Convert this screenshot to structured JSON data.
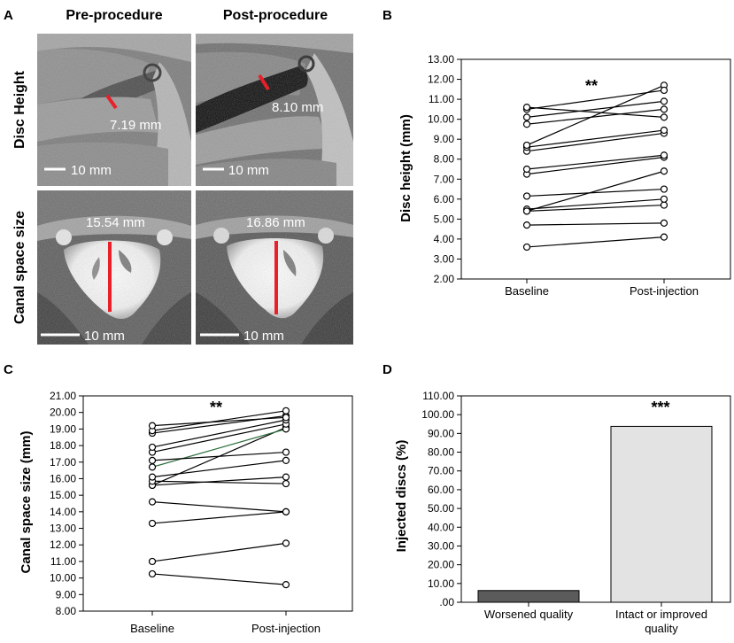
{
  "panels": {
    "A": {
      "letter": "A",
      "col_pre": "Pre-procedure",
      "col_post": "Post-procedure",
      "row1": "Disc Height",
      "row2": "Canal space size",
      "meas_disc_pre": "7.19 mm",
      "meas_disc_post": "8.10 mm",
      "meas_canal_pre": "15.54 mm",
      "meas_canal_post": "16.86 mm",
      "scale": "10 mm",
      "marker_color": "#e8202a"
    },
    "B": {
      "letter": "B"
    },
    "C": {
      "letter": "C"
    },
    "D": {
      "letter": "D"
    }
  },
  "chart_data": [
    {
      "id": "B",
      "type": "line",
      "ylabel": "Disc height (mm)",
      "categories": [
        "Baseline",
        "Post-injection"
      ],
      "ylim": [
        2.0,
        13.0
      ],
      "yticks": [
        "2.00",
        "3.00",
        "4.00",
        "5.00",
        "6.00",
        "7.00",
        "8.00",
        "9.00",
        "10.00",
        "11.00",
        "12.00",
        "13.00"
      ],
      "significance": "**",
      "pairs": [
        [
          3.6,
          4.1
        ],
        [
          4.7,
          4.8
        ],
        [
          5.4,
          5.7
        ],
        [
          5.5,
          6.0
        ],
        [
          5.4,
          7.4
        ],
        [
          6.15,
          6.5
        ],
        [
          7.25,
          8.1
        ],
        [
          7.5,
          8.2
        ],
        [
          8.4,
          9.3
        ],
        [
          8.6,
          9.45
        ],
        [
          8.7,
          11.7
        ],
        [
          9.75,
          10.5
        ],
        [
          10.1,
          10.9
        ],
        [
          10.5,
          11.45
        ],
        [
          10.6,
          10.1
        ]
      ],
      "line_color": "#000000"
    },
    {
      "id": "C",
      "type": "line",
      "ylabel": "Canal space size (mm)",
      "categories": [
        "Baseline",
        "Post-injection"
      ],
      "ylim": [
        8.0,
        21.0
      ],
      "yticks": [
        "8.00",
        "9.00",
        "10.00",
        "11.00",
        "12.00",
        "13.00",
        "14.00",
        "15.00",
        "16.00",
        "17.00",
        "18.00",
        "19.00",
        "20.00",
        "21.00"
      ],
      "significance": "**",
      "pairs": [
        [
          10.25,
          9.6
        ],
        [
          11.0,
          12.1
        ],
        [
          13.3,
          14.0
        ],
        [
          14.6,
          14.0
        ],
        [
          15.6,
          16.1
        ],
        [
          15.6,
          19.1
        ],
        [
          15.85,
          15.7
        ],
        [
          16.1,
          17.1
        ],
        [
          16.7,
          19.0
        ],
        [
          17.1,
          17.6
        ],
        [
          17.6,
          19.3
        ],
        [
          17.9,
          19.55
        ],
        [
          18.75,
          19.8
        ],
        [
          18.9,
          20.1
        ],
        [
          19.2,
          19.7
        ]
      ],
      "highlight_index": 8,
      "highlight_color": "#2d6e3e",
      "line_color": "#000000"
    },
    {
      "id": "D",
      "type": "bar",
      "ylabel": "Injected discs (%)",
      "categories": [
        "Worsened quality",
        "Intact or improved"
      ],
      "category_line2": [
        "",
        "quality"
      ],
      "values": [
        6.25,
        93.75
      ],
      "ylim": [
        0,
        110
      ],
      "yticks": [
        ".00",
        "10.00",
        "20.00",
        "30.00",
        "40.00",
        "50.00",
        "60.00",
        "70.00",
        "80.00",
        "90.00",
        "100.00",
        "110.00"
      ],
      "significance": "***",
      "colors": [
        "#5b5b5b",
        "#e3e3e3"
      ]
    }
  ]
}
